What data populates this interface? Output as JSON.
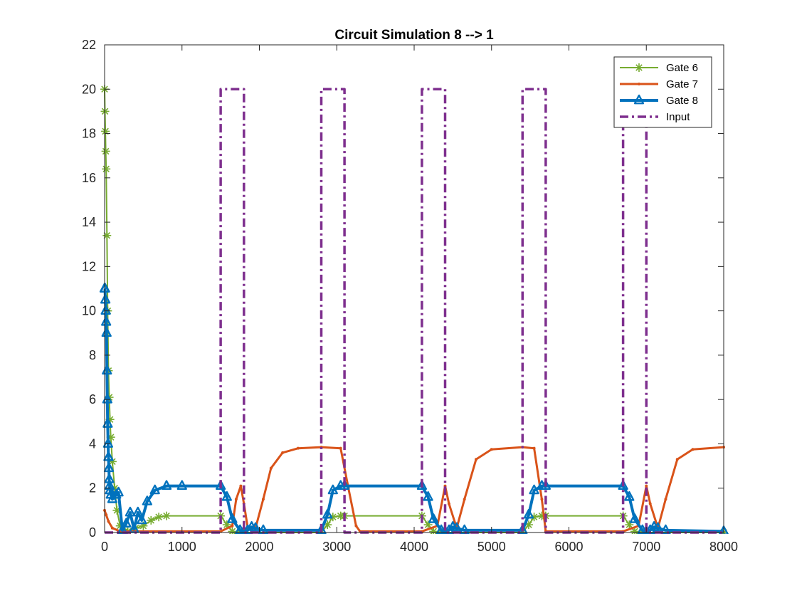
{
  "chart_data": {
    "type": "line",
    "title": "Circuit Simulation 8 --> 1",
    "xlabel": "",
    "ylabel": "",
    "xlim": [
      0,
      8000
    ],
    "ylim": [
      0,
      22
    ],
    "x_ticks": [
      0,
      1000,
      2000,
      3000,
      4000,
      5000,
      6000,
      7000,
      8000
    ],
    "y_ticks": [
      0,
      2,
      4,
      6,
      8,
      10,
      12,
      14,
      16,
      18,
      20,
      22
    ],
    "grid": false,
    "legend_position": "top-right",
    "series": [
      {
        "name": "Gate 6",
        "color": "#77AC30",
        "line_style": "solid",
        "marker": "asterisk",
        "x": [
          0,
          5,
          10,
          15,
          20,
          30,
          40,
          50,
          60,
          70,
          80,
          100,
          130,
          160,
          200,
          260,
          300,
          400,
          500,
          600,
          700,
          800,
          1500,
          1580,
          1650,
          1750,
          1800,
          2800,
          2880,
          2950,
          3050,
          3100,
          4100,
          4180,
          4250,
          4350,
          4400,
          5400,
          5480,
          5550,
          5650,
          5700,
          6700,
          6780,
          6850,
          6950,
          7000,
          8000
        ],
        "y": [
          20,
          19,
          18.1,
          17.2,
          16.4,
          13.4,
          10,
          7.3,
          6.1,
          5.1,
          4.3,
          3.2,
          2.0,
          1.0,
          0.3,
          0.05,
          0.05,
          0.2,
          0.3,
          0.55,
          0.7,
          0.75,
          0.75,
          0.35,
          0.05,
          0.0,
          0.0,
          0.0,
          0.35,
          0.7,
          0.75,
          0.75,
          0.75,
          0.35,
          0.05,
          0.0,
          0.0,
          0.0,
          0.35,
          0.7,
          0.75,
          0.75,
          0.75,
          0.35,
          0.05,
          0.0,
          0.0,
          0.0
        ]
      },
      {
        "name": "Gate 7",
        "color": "#D95319",
        "line_style": "solid",
        "marker": "point",
        "x": [
          0,
          20,
          50,
          100,
          200,
          1500,
          1650,
          1700,
          1760,
          1800,
          1850,
          1950,
          2050,
          2150,
          2300,
          2500,
          2800,
          3050,
          3150,
          3250,
          3300,
          4100,
          4300,
          4400,
          4450,
          4550,
          4650,
          4800,
          5000,
          5400,
          5550,
          5650,
          5700,
          6700,
          6900,
          7000,
          7050,
          7150,
          7250,
          7400,
          7600,
          8000
        ],
        "y": [
          1.0,
          0.8,
          0.5,
          0.2,
          0.05,
          0.05,
          0.3,
          1.5,
          2.1,
          1.3,
          0.2,
          0.2,
          1.5,
          2.9,
          3.6,
          3.8,
          3.85,
          3.8,
          2.0,
          0.3,
          0.05,
          0.05,
          0.3,
          2.1,
          1.3,
          0.2,
          1.5,
          3.3,
          3.75,
          3.85,
          3.8,
          1.5,
          0.05,
          0.05,
          0.3,
          2.1,
          1.3,
          0.2,
          1.5,
          3.3,
          3.75,
          3.85
        ]
      },
      {
        "name": "Gate 8",
        "color": "#0072BD",
        "line_style": "solid",
        "marker": "triangle",
        "x": [
          0,
          5,
          10,
          15,
          20,
          25,
          30,
          35,
          40,
          45,
          50,
          55,
          60,
          65,
          70,
          80,
          100,
          150,
          180,
          230,
          280,
          330,
          380,
          430,
          480,
          550,
          650,
          800,
          1000,
          1500,
          1580,
          1650,
          1750,
          1800,
          1850,
          1900,
          1950,
          2050,
          2800,
          2880,
          2950,
          3050,
          3100,
          4100,
          4180,
          4250,
          4350,
          4400,
          4450,
          4500,
          4550,
          4650,
          5400,
          5480,
          5550,
          5650,
          5700,
          6700,
          6780,
          6850,
          6950,
          7000,
          7050,
          7100,
          7150,
          7250,
          8000
        ],
        "y": [
          11,
          11,
          10.5,
          10,
          9.5,
          9,
          7.3,
          6,
          4.9,
          4,
          3.4,
          2.9,
          2.4,
          2.1,
          1.9,
          1.7,
          1.5,
          1.7,
          1.8,
          0.1,
          0.4,
          0.9,
          0.15,
          0.9,
          0.55,
          1.4,
          1.9,
          2.1,
          2.1,
          2.1,
          1.6,
          0.6,
          0.1,
          0.05,
          0.1,
          0.25,
          0.2,
          0.1,
          0.1,
          0.8,
          1.9,
          2.1,
          2.1,
          2.1,
          1.6,
          0.6,
          0.1,
          0.05,
          0.1,
          0.25,
          0.2,
          0.1,
          0.1,
          0.8,
          1.9,
          2.1,
          2.1,
          2.1,
          1.6,
          0.6,
          0.1,
          0.05,
          0.1,
          0.25,
          0.2,
          0.1,
          0.05
        ]
      },
      {
        "name": "Input",
        "color": "#7E2F8E",
        "line_style": "dash-dot",
        "marker": "none",
        "x": [
          0,
          1500,
          1500,
          1800,
          1800,
          2800,
          2800,
          3100,
          3100,
          4100,
          4100,
          4400,
          4400,
          5400,
          5400,
          5700,
          5700,
          6700,
          6700,
          7000,
          7000,
          8000
        ],
        "y": [
          0,
          0,
          20,
          20,
          0,
          0,
          20,
          20,
          0,
          0,
          20,
          20,
          0,
          0,
          20,
          20,
          0,
          0,
          20,
          20,
          0,
          0
        ]
      }
    ]
  }
}
